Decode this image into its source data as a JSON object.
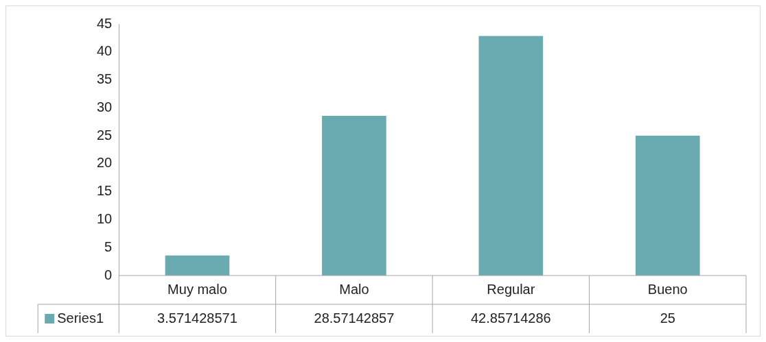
{
  "chart_data": {
    "type": "bar",
    "categories": [
      "Muy malo",
      "Malo",
      "Regular",
      "Bueno"
    ],
    "series": [
      {
        "name": "Series1",
        "color": "#6aabb2",
        "values": [
          3.571428571,
          28.57142857,
          42.85714286,
          25
        ]
      }
    ],
    "ylim": [
      0,
      45
    ],
    "yticks": [
      0,
      5,
      10,
      15,
      20,
      25,
      30,
      35,
      40,
      45
    ],
    "grid": false,
    "data_labels": true
  }
}
